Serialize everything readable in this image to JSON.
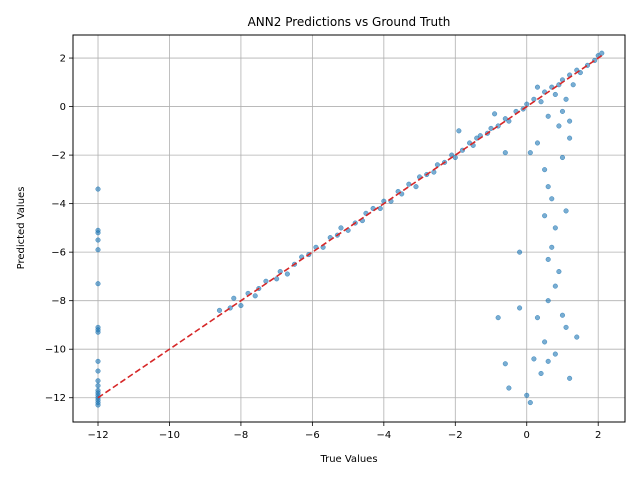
{
  "chart_data": {
    "type": "scatter",
    "title": "ANN2 Predictions vs Ground Truth",
    "xlabel": "True Values",
    "ylabel": "Predicted Values",
    "xlim": [
      -12.7,
      2.75
    ],
    "ylim": [
      -13.0,
      2.95
    ],
    "xticks": [
      -12,
      -10,
      -8,
      -6,
      -4,
      -2,
      0,
      2
    ],
    "yticks": [
      -12,
      -10,
      -8,
      -6,
      -4,
      -2,
      0,
      2
    ],
    "grid": true,
    "colors": {
      "points": "#1f77b4",
      "reference": "#d62728",
      "grid": "#b0b0b0"
    },
    "series": [
      {
        "type": "scatter",
        "points": [
          [
            -12,
            -3.4
          ],
          [
            -12,
            -5.1
          ],
          [
            -12,
            -5.2
          ],
          [
            -12,
            -5.5
          ],
          [
            -12,
            -5.9
          ],
          [
            -12,
            -7.3
          ],
          [
            -12,
            -9.1
          ],
          [
            -12,
            -9.2
          ],
          [
            -12,
            -9.3
          ],
          [
            -12,
            -10.5
          ],
          [
            -12,
            -10.9
          ],
          [
            -12,
            -11.3
          ],
          [
            -12,
            -11.5
          ],
          [
            -12,
            -11.7
          ],
          [
            -12,
            -11.8
          ],
          [
            -12,
            -11.9
          ],
          [
            -12,
            -12.0
          ],
          [
            -12,
            -12.1
          ],
          [
            -12,
            -12.2
          ],
          [
            -12,
            -12.3
          ],
          [
            -8.6,
            -8.4
          ],
          [
            -8.3,
            -8.3
          ],
          [
            -8.2,
            -7.9
          ],
          [
            -8.0,
            -8.2
          ],
          [
            -7.8,
            -7.7
          ],
          [
            -7.6,
            -7.8
          ],
          [
            -7.5,
            -7.5
          ],
          [
            -7.3,
            -7.2
          ],
          [
            -7.0,
            -7.1
          ],
          [
            -6.9,
            -6.8
          ],
          [
            -6.7,
            -6.9
          ],
          [
            -6.5,
            -6.5
          ],
          [
            -6.3,
            -6.2
          ],
          [
            -6.1,
            -6.1
          ],
          [
            -5.9,
            -5.8
          ],
          [
            -5.7,
            -5.8
          ],
          [
            -5.5,
            -5.4
          ],
          [
            -5.3,
            -5.3
          ],
          [
            -5.2,
            -5.0
          ],
          [
            -5.0,
            -5.1
          ],
          [
            -4.8,
            -4.8
          ],
          [
            -4.6,
            -4.7
          ],
          [
            -4.5,
            -4.4
          ],
          [
            -4.3,
            -4.2
          ],
          [
            -4.1,
            -4.2
          ],
          [
            -4.0,
            -3.9
          ],
          [
            -3.8,
            -3.9
          ],
          [
            -3.6,
            -3.5
          ],
          [
            -3.5,
            -3.6
          ],
          [
            -3.3,
            -3.2
          ],
          [
            -3.1,
            -3.3
          ],
          [
            -3.0,
            -2.9
          ],
          [
            -2.8,
            -2.8
          ],
          [
            -2.6,
            -2.7
          ],
          [
            -2.5,
            -2.4
          ],
          [
            -2.3,
            -2.3
          ],
          [
            -2.1,
            -2.0
          ],
          [
            -2.0,
            -2.1
          ],
          [
            -1.8,
            -1.8
          ],
          [
            -1.6,
            -1.5
          ],
          [
            -1.5,
            -1.6
          ],
          [
            -1.3,
            -1.2
          ],
          [
            -1.1,
            -1.1
          ],
          [
            -1.0,
            -0.9
          ],
          [
            -0.8,
            -0.8
          ],
          [
            -0.6,
            -0.5
          ],
          [
            -0.5,
            -0.6
          ],
          [
            -0.3,
            -0.2
          ],
          [
            -0.1,
            -0.1
          ],
          [
            0.0,
            0.1
          ],
          [
            0.2,
            0.3
          ],
          [
            0.4,
            0.2
          ],
          [
            0.5,
            0.6
          ],
          [
            0.7,
            0.8
          ],
          [
            0.9,
            0.9
          ],
          [
            1.0,
            1.1
          ],
          [
            1.2,
            1.3
          ],
          [
            1.4,
            1.5
          ],
          [
            1.5,
            1.4
          ],
          [
            1.7,
            1.7
          ],
          [
            1.9,
            1.9
          ],
          [
            2.0,
            2.1
          ],
          [
            2.1,
            2.2
          ],
          [
            -1.9,
            -1.0
          ],
          [
            -1.4,
            -1.3
          ],
          [
            -0.9,
            -0.3
          ],
          [
            -0.6,
            -1.9
          ],
          [
            0.3,
            0.8
          ],
          [
            0.6,
            -0.4
          ],
          [
            0.8,
            0.5
          ],
          [
            1.0,
            -0.2
          ],
          [
            1.1,
            0.3
          ],
          [
            1.3,
            0.9
          ],
          [
            0.9,
            -0.8
          ],
          [
            1.2,
            -0.6
          ],
          [
            0.1,
            -1.9
          ],
          [
            0.3,
            -1.5
          ],
          [
            0.5,
            -2.6
          ],
          [
            0.6,
            -3.3
          ],
          [
            0.7,
            -3.8
          ],
          [
            0.5,
            -4.5
          ],
          [
            0.8,
            -5.0
          ],
          [
            0.7,
            -5.8
          ],
          [
            0.6,
            -6.3
          ],
          [
            0.9,
            -6.8
          ],
          [
            0.8,
            -7.4
          ],
          [
            0.6,
            -8.0
          ],
          [
            0.3,
            -8.7
          ],
          [
            0.5,
            -9.7
          ],
          [
            0.8,
            -10.2
          ],
          [
            0.6,
            -10.5
          ],
          [
            0.2,
            -10.4
          ],
          [
            0.4,
            -11.0
          ],
          [
            0.0,
            -11.9
          ],
          [
            0.1,
            -12.2
          ],
          [
            1.2,
            -11.2
          ],
          [
            1.4,
            -9.5
          ],
          [
            1.1,
            -9.1
          ],
          [
            -0.2,
            -6.0
          ],
          [
            -0.2,
            -8.3
          ],
          [
            -0.5,
            -11.6
          ],
          [
            -0.8,
            -8.7
          ],
          [
            -0.6,
            -10.6
          ],
          [
            1.0,
            -8.6
          ],
          [
            1.1,
            -4.3
          ],
          [
            1.0,
            -2.1
          ],
          [
            1.2,
            -1.3
          ]
        ]
      },
      {
        "type": "line",
        "style": "dashed",
        "points": [
          [
            -12,
            -12
          ],
          [
            2.1,
            2.1
          ]
        ]
      }
    ]
  }
}
